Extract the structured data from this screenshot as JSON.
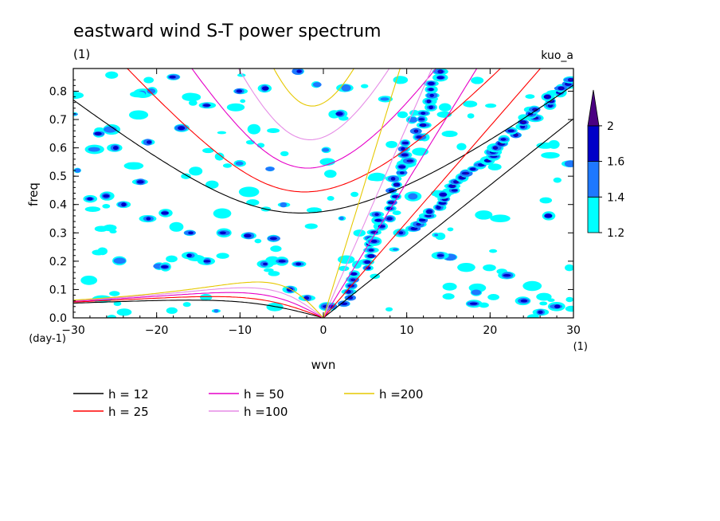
{
  "chart_data": {
    "type": "line",
    "title": "eastward wind S-T power spectrum",
    "subtitle": "(1)",
    "corner_label": "kuo_a",
    "xlabel": "wvn",
    "ylabel": "freq",
    "x_unit": "(1)",
    "y_unit": "(day-1)",
    "xlim": [
      -30,
      30
    ],
    "ylim": [
      0,
      0.88
    ],
    "x_ticks": [
      -30,
      -20,
      -10,
      0,
      10,
      20,
      30
    ],
    "x_tick_labels": [
      "−30",
      "−20",
      "−10",
      "0",
      "10",
      "20",
      "30"
    ],
    "y_ticks": [
      0.0,
      0.1,
      0.2,
      0.3,
      0.4,
      0.5,
      0.6,
      0.7,
      0.8
    ],
    "y_tick_labels": [
      "0.0",
      "0.1",
      "0.2",
      "0.3",
      "0.4",
      "0.5",
      "0.6",
      "0.7",
      "0.8"
    ],
    "contour_levels": [
      1.2,
      1.4,
      1.6,
      2
    ],
    "colorbar_labels": [
      "1.2",
      "1.4",
      "1.6",
      "2"
    ],
    "colorbar_colors": [
      "#00ffff",
      "#1e78ff",
      "#0000c8",
      "#4b0082"
    ],
    "series": [
      {
        "name": "h = 12",
        "h": 12,
        "color": "#000000"
      },
      {
        "name": "h = 25",
        "h": 25,
        "color": "#ff0000"
      },
      {
        "name": "h = 50",
        "h": 50,
        "color": "#e600c8"
      },
      {
        "name": "h =100",
        "h": 100,
        "color": "#e68ce6"
      },
      {
        "name": "h =200",
        "h": 200,
        "color": "#e6c800"
      }
    ],
    "grid": false,
    "legend_position": "below"
  }
}
